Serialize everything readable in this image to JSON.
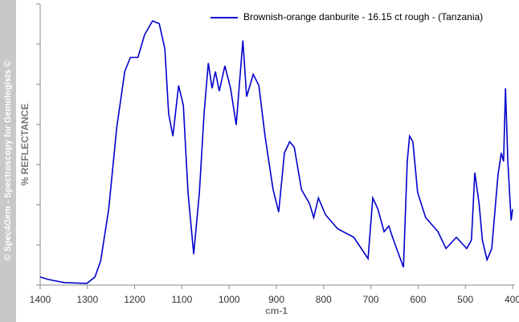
{
  "chart_data": {
    "type": "line",
    "watermark": "© Spec4Gem - Spectroscopy for Gemologists ©",
    "ylabel": "% REFLECTANCE",
    "xlabel": "cm-1",
    "xlim": [
      1400,
      400
    ],
    "ylim": [
      0,
      100
    ],
    "xticks": [
      1400,
      1300,
      1200,
      1100,
      1000,
      900,
      800,
      700,
      600,
      500,
      400
    ],
    "legend": "upper right",
    "series": [
      {
        "name": "Brownish-orange danburite - 16.15 ct rough - (Tanzania)",
        "color": "#0000cc",
        "x": [
          1400,
          1383,
          1349,
          1301,
          1284,
          1272,
          1255,
          1238,
          1221,
          1209,
          1193,
          1179,
          1162,
          1148,
          1136,
          1128,
          1119,
          1107,
          1097,
          1087,
          1075,
          1063,
          1053,
          1044,
          1036,
          1029,
          1021,
          1009,
          997,
          985,
          971,
          963,
          949,
          937,
          924,
          907,
          895,
          883,
          872,
          862,
          847,
          830,
          821,
          811,
          796,
          770,
          736,
          706,
          696,
          685,
          672,
          662,
          652,
          631,
          623,
          618,
          611,
          601,
          584,
          558,
          541,
          519,
          497,
          487,
          480,
          471,
          464,
          454,
          444,
          431,
          424,
          419,
          415,
          410,
          403,
          400
        ],
        "values": [
          2.9,
          2,
          0.9,
          0.6,
          2.9,
          8.6,
          27,
          56,
          76,
          81,
          81,
          89,
          94,
          93,
          84,
          61,
          53,
          71,
          64,
          33,
          11,
          33,
          61,
          79,
          70,
          76,
          69,
          78,
          70,
          57,
          87,
          67,
          75,
          71,
          53,
          34,
          26,
          47,
          51,
          49,
          34,
          29,
          24,
          31,
          25,
          20,
          17,
          9.4,
          31,
          27,
          19,
          21,
          16,
          6.3,
          44,
          53,
          51,
          33,
          24,
          19,
          13,
          17,
          13,
          16,
          40,
          29,
          16,
          9,
          13,
          39,
          47,
          44,
          70,
          44,
          23,
          27
        ]
      }
    ]
  }
}
